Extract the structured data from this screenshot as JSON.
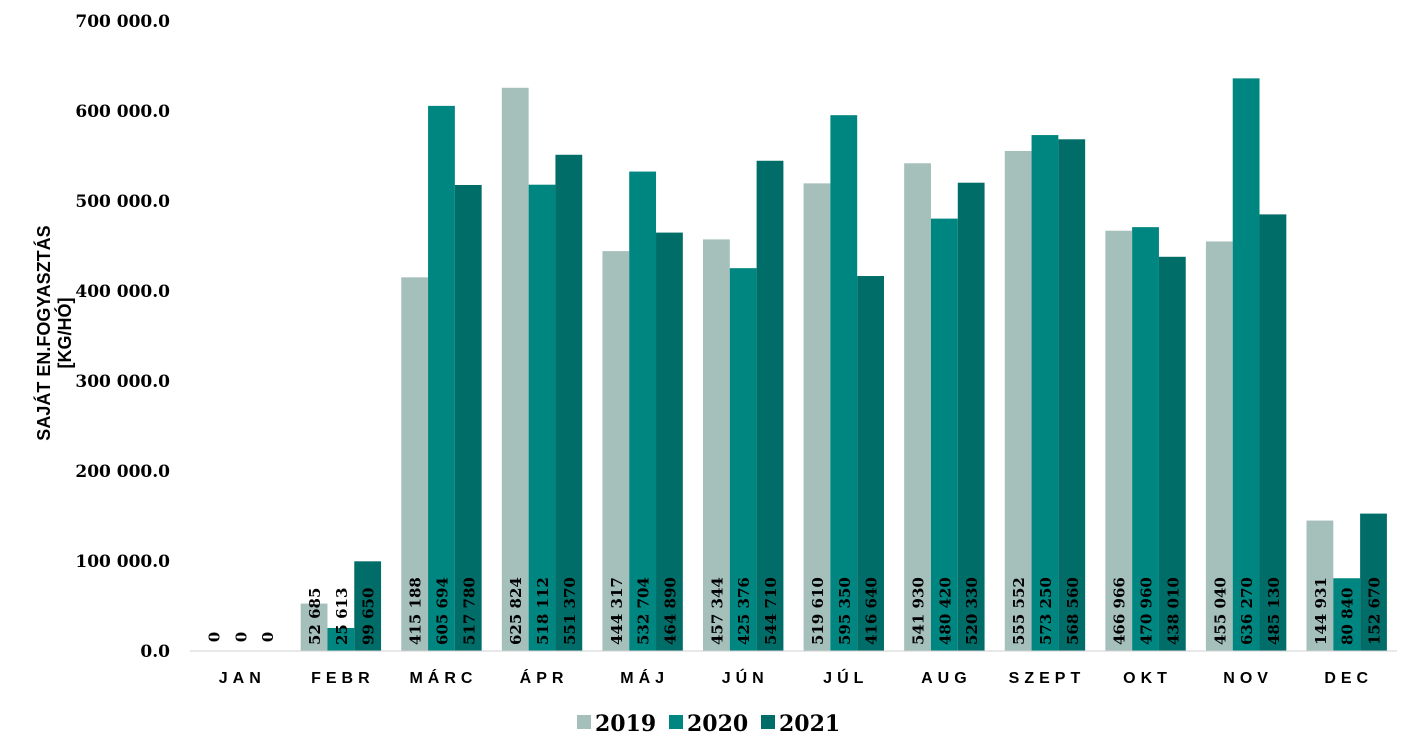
{
  "chart_data": {
    "type": "bar",
    "title": "",
    "xlabel": "",
    "ylabel_lines": [
      "SAJÁT EN.FOGYASZTÁS",
      "[KG/HÓ]"
    ],
    "ylim": [
      0,
      700000
    ],
    "yticks": [
      "0.0",
      "100 000.0",
      "200 000.0",
      "300 000.0",
      "400 000.0",
      "500 000.0",
      "600 000.0",
      "700 000.0"
    ],
    "grid": false,
    "legend_position": "bottom",
    "categories": [
      "JAN",
      "FEBR",
      "MÁRC",
      "ÁPR",
      "MÁJ",
      "JÚN",
      "JÚL",
      "AUG",
      "SZEPT",
      "OKT",
      "NOV",
      "DEC"
    ],
    "series": [
      {
        "name": "2019",
        "color": "#a5bfbb",
        "values": [
          0,
          52685,
          415188,
          625824,
          444317,
          457344,
          519610,
          541930,
          555552,
          466966,
          455040,
          144931
        ],
        "labels": [
          "0",
          "52 685",
          "415 188",
          "625 824",
          "444 317",
          "457 344",
          "519 610",
          "541 930",
          "555 552",
          "466 966",
          "455 040",
          "144 931"
        ]
      },
      {
        "name": "2020",
        "color": "#008680",
        "values": [
          0,
          25613,
          605694,
          518112,
          532704,
          425376,
          595350,
          480420,
          573250,
          470960,
          636270,
          80840
        ],
        "labels": [
          "0",
          "25 613",
          "605 694",
          "518 112",
          "532 704",
          "425 376",
          "595 350",
          "480 420",
          "573 250",
          "470 960",
          "636 270",
          "80 840"
        ]
      },
      {
        "name": "2021",
        "color": "#006d68",
        "values": [
          0,
          99650,
          517780,
          551370,
          464890,
          544710,
          416640,
          520330,
          568560,
          438010,
          485130,
          152670
        ],
        "labels": [
          "0",
          "99 650",
          "517 780",
          "551 370",
          "464 890",
          "544 710",
          "416 640",
          "520 330",
          "568 560",
          "438 010",
          "485 130",
          "152 670"
        ]
      }
    ]
  }
}
